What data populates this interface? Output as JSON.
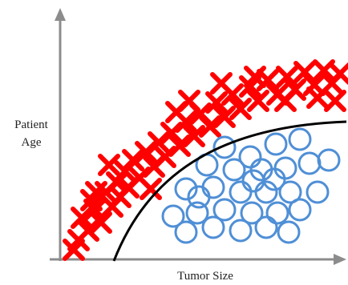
{
  "labels": {
    "y_axis": [
      "Patient",
      "Age"
    ],
    "x_axis": "Tumor Size"
  },
  "colors": {
    "cross": "#ff0000",
    "circle": "#4f8fd6",
    "boundary": "#000000",
    "axis": "#8c8c8c"
  },
  "legend": {
    "cross_meaning": "",
    "circle_meaning": ""
  }
}
